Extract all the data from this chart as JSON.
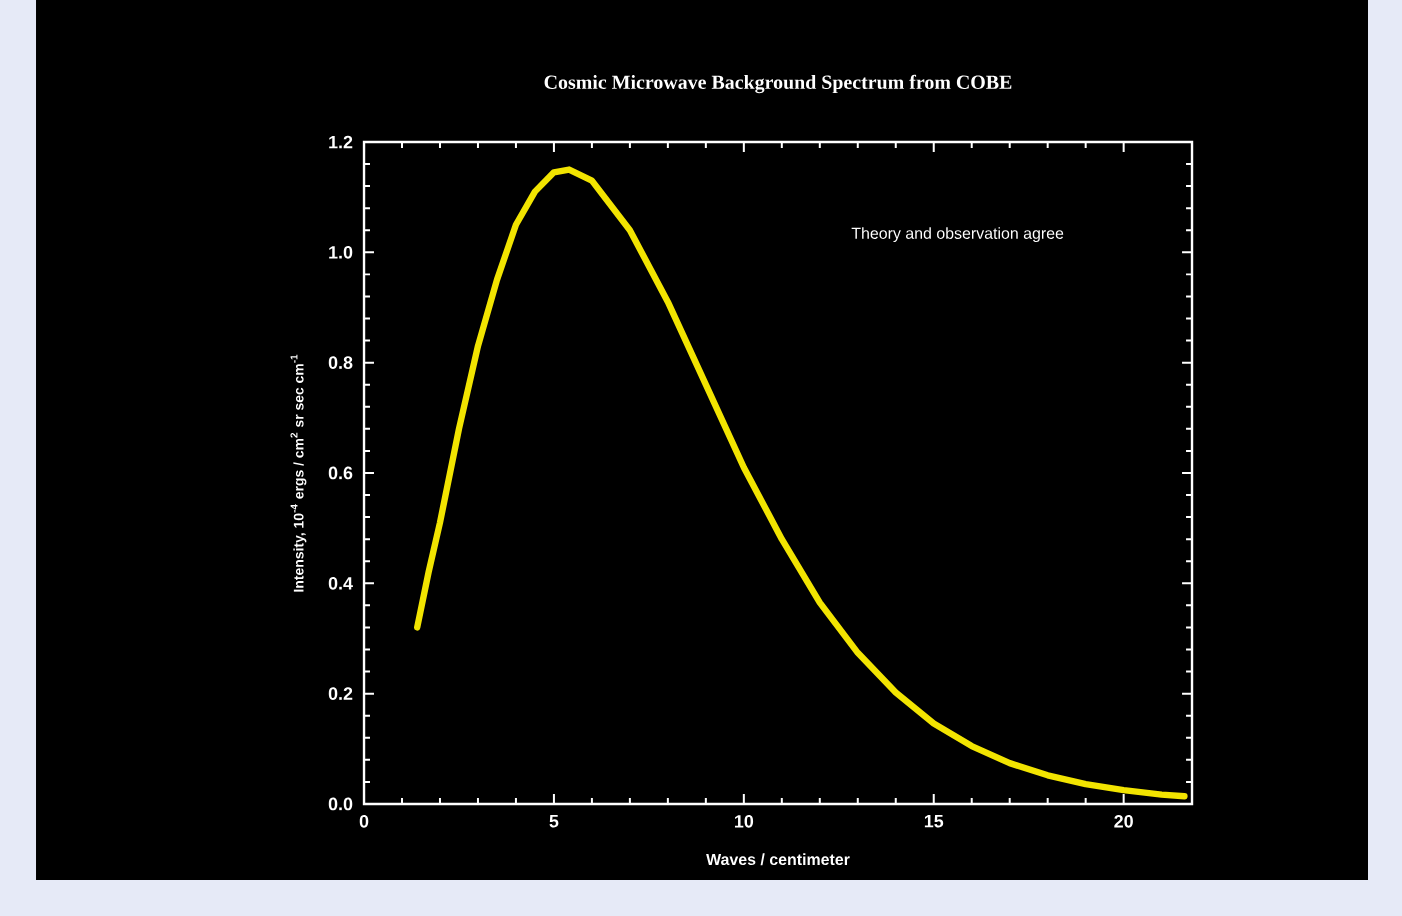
{
  "chart_data": {
    "type": "line",
    "title": "Cosmic Microwave Background Spectrum from COBE",
    "xlabel": "Waves / centimeter",
    "ylabel": "Intensity, 10$^{-4}$ ergs / cm$^{2}$ sr sec cm$^{-1}$",
    "annotations": [
      "Theory and observation agree"
    ],
    "x": [
      1.4,
      1.7,
      2,
      2.5,
      3,
      3.5,
      4,
      4.5,
      5,
      5.4,
      6,
      7,
      8,
      9,
      10,
      11,
      12,
      13,
      14,
      15,
      16,
      17,
      18,
      19,
      20,
      21,
      21.6
    ],
    "series": [
      {
        "color": "#f2e400",
        "values": [
          0.32,
          0.42,
          0.51,
          0.68,
          0.83,
          0.95,
          1.05,
          1.11,
          1.145,
          1.15,
          1.13,
          1.04,
          0.91,
          0.76,
          0.61,
          0.48,
          0.365,
          0.274,
          0.202,
          0.146,
          0.105,
          0.074,
          0.052,
          0.036,
          0.025,
          0.017,
          0.014
        ]
      }
    ],
    "xlim": [
      0,
      21.8
    ],
    "ylim": [
      0,
      1.2
    ],
    "xticks": [
      0,
      5,
      10,
      15,
      20
    ],
    "yticks": [
      {
        "value": 0,
        "label": "0.0"
      },
      {
        "value": 0.2,
        "label": "0.2"
      },
      {
        "value": 0.4,
        "label": "0.4"
      },
      {
        "value": 0.6,
        "label": "0.6"
      },
      {
        "value": 0.8,
        "label": "0.8"
      },
      {
        "value": 1.0,
        "label": "1.0"
      },
      {
        "value": 1.2,
        "label": "1.2"
      }
    ],
    "marker": "none",
    "line_style": "solid"
  }
}
